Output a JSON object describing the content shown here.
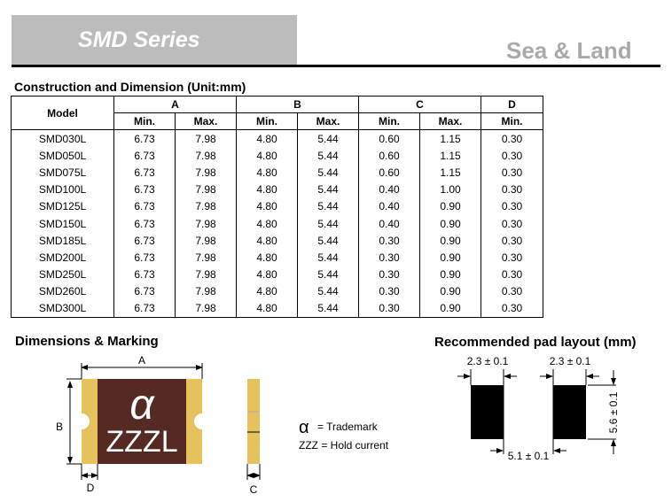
{
  "header": {
    "series_title": "SMD Series",
    "brand": "Sea & Land"
  },
  "table": {
    "title": "Construction and Dimension (Unit:mm)",
    "model_label": "Model",
    "groups": [
      "A",
      "B",
      "C",
      "D"
    ],
    "subheaders": [
      "Min.",
      "Max.",
      "Min.",
      "Max.",
      "Min.",
      "Max.",
      "Min."
    ],
    "rows": [
      [
        "SMD030L",
        "6.73",
        "7.98",
        "4.80",
        "5.44",
        "0.60",
        "1.15",
        "0.30"
      ],
      [
        "SMD050L",
        "6.73",
        "7.98",
        "4.80",
        "5.44",
        "0.60",
        "1.15",
        "0.30"
      ],
      [
        "SMD075L",
        "6.73",
        "7.98",
        "4.80",
        "5.44",
        "0.60",
        "1.15",
        "0.30"
      ],
      [
        "SMD100L",
        "6.73",
        "7.98",
        "4.80",
        "5.44",
        "0.40",
        "1.00",
        "0.30"
      ],
      [
        "SMD125L",
        "6.73",
        "7.98",
        "4.80",
        "5.44",
        "0.40",
        "0.90",
        "0.30"
      ],
      [
        "SMD150L",
        "6.73",
        "7.98",
        "4.80",
        "5.44",
        "0.40",
        "0.90",
        "0.30"
      ],
      [
        "SMD185L",
        "6.73",
        "7.98",
        "4.80",
        "5.44",
        "0.30",
        "0.90",
        "0.30"
      ],
      [
        "SMD200L",
        "6.73",
        "7.98",
        "4.80",
        "5.44",
        "0.30",
        "0.90",
        "0.30"
      ],
      [
        "SMD250L",
        "6.73",
        "7.98",
        "4.80",
        "5.44",
        "0.30",
        "0.90",
        "0.30"
      ],
      [
        "SMD260L",
        "6.73",
        "7.98",
        "4.80",
        "5.44",
        "0.30",
        "0.90",
        "0.30"
      ],
      [
        "SMD300L",
        "6.73",
        "7.98",
        "4.80",
        "5.44",
        "0.30",
        "0.90",
        "0.30"
      ]
    ]
  },
  "marking": {
    "title": "Dimensions & Marking",
    "label_a": "A",
    "label_b": "B",
    "label_c": "C",
    "label_d": "D",
    "symbol": "α",
    "code": "ZZZL",
    "legend_symbol": "α",
    "legend_symbol_text": "= Trademark",
    "legend_code": "ZZZ = Hold current",
    "colors": {
      "body": "#552a22",
      "terminal": "#e6c25e"
    }
  },
  "pad": {
    "title": "Recommended pad layout (mm)",
    "width1": "2.3 ± 0.1",
    "width2": "2.3 ± 0.1",
    "height": "5.6 ± 0.1",
    "gap": "5.1 ± 0.1"
  }
}
